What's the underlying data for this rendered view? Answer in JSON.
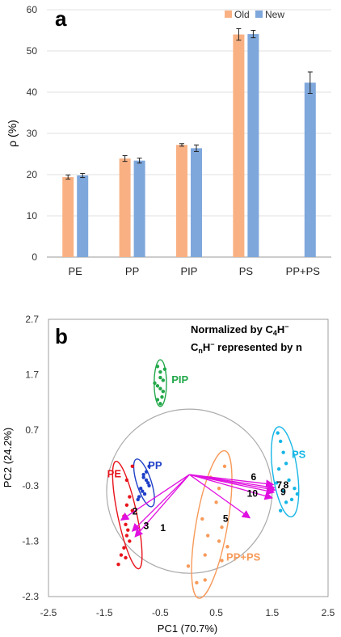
{
  "panels": {
    "a_label": "a",
    "b_label": "b"
  },
  "chart_data": [
    {
      "type": "bar",
      "panel": "a",
      "categories": [
        "PE",
        "PP",
        "PIP",
        "PS",
        "PP+PS"
      ],
      "series": [
        {
          "name": "Old",
          "color": "#f9b183",
          "values": [
            19.4,
            23.9,
            27.2,
            54.0,
            null
          ],
          "errors": [
            0.5,
            0.7,
            0.3,
            1.4,
            null
          ]
        },
        {
          "name": "New",
          "color": "#7ea7dc",
          "values": [
            19.8,
            23.4,
            26.4,
            54.1,
            42.3
          ],
          "errors": [
            0.5,
            0.6,
            0.8,
            0.9,
            2.6
          ]
        }
      ],
      "ylabel": "ρ (%)",
      "xlabel": "",
      "ylim": [
        0,
        60
      ],
      "yticks": [
        0,
        10,
        20,
        30,
        40,
        50,
        60
      ],
      "legend": "top-right",
      "grid": true
    },
    {
      "type": "scatter",
      "panel": "b",
      "xlabel": "PC1 (70.7%)",
      "ylabel": "PC2 (24.2%)",
      "xlim": [
        -2.5,
        2.5
      ],
      "ylim": [
        -2.3,
        2.7
      ],
      "xticks": [
        -2.5,
        -1.5,
        -0.5,
        0.5,
        1.5,
        2.5
      ],
      "yticks": [
        -2.3,
        -1.3,
        -0.3,
        0.7,
        1.7,
        2.7
      ],
      "yticklabels": [
        "-2.3",
        "-1.3",
        "-0.3",
        "0.7",
        "1.7",
        "2.7"
      ],
      "xticklabels": [
        "-2.5",
        "-1.5",
        "-0.5",
        "0.5",
        "1.5",
        "2.5"
      ],
      "note_line1": "Normalized by C",
      "note_sub1": "4",
      "note_mid1": "H",
      "note_sup1": "−",
      "note_line2_a": "C",
      "note_sub2": "n",
      "note_line2_b": "H",
      "note_sup2": "−",
      "note_line2_c": " represented by n",
      "circle": {
        "cx": 0.02,
        "cy": -0.4,
        "r": 1.48,
        "color": "#aaaaaa"
      },
      "groups": [
        {
          "name": "PIP",
          "color": "#22a84a",
          "points": [
            [
              -0.55,
              1.85
            ],
            [
              -0.5,
              1.75
            ],
            [
              -0.45,
              1.6
            ],
            [
              -0.55,
              1.5
            ],
            [
              -0.42,
              1.8
            ],
            [
              -0.5,
              1.45
            ],
            [
              -0.6,
              1.55
            ],
            [
              -0.47,
              1.3
            ],
            [
              -0.55,
              1.25
            ],
            [
              -0.5,
              1.65
            ],
            [
              -0.45,
              1.4
            ],
            [
              -0.5,
              1.18
            ]
          ],
          "ellipse": {
            "cx": -0.5,
            "cy": 1.55,
            "rx": 0.11,
            "ry": 0.42,
            "angle": 0
          },
          "label_pos": [
            -0.3,
            1.55
          ]
        },
        {
          "name": "PP",
          "color": "#2040c8",
          "points": [
            [
              -0.7,
              0.05
            ],
            [
              -0.75,
              -0.05
            ],
            [
              -0.8,
              -0.15
            ],
            [
              -0.72,
              -0.25
            ],
            [
              -0.85,
              -0.35
            ],
            [
              -0.78,
              -0.45
            ],
            [
              -0.9,
              -0.55
            ],
            [
              -0.8,
              -0.1
            ],
            [
              -0.7,
              -0.3
            ],
            [
              -0.88,
              -0.5
            ],
            [
              -0.75,
              -0.2
            ],
            [
              -0.82,
              -0.4
            ]
          ],
          "ellipse": {
            "cx": -0.79,
            "cy": -0.25,
            "rx": 0.13,
            "ry": 0.45,
            "angle": -18
          },
          "label_pos": [
            -0.72,
            0.0
          ]
        },
        {
          "name": "PE",
          "color": "#e8141c",
          "points": [
            [
              -1.0,
              0.05
            ],
            [
              -1.1,
              -0.2
            ],
            [
              -1.05,
              -0.5
            ],
            [
              -1.15,
              -0.85
            ],
            [
              -1.12,
              -1.0
            ],
            [
              -1.08,
              -1.1
            ],
            [
              -1.1,
              -1.2
            ],
            [
              -1.05,
              -1.3
            ],
            [
              -1.15,
              -1.42
            ],
            [
              -1.2,
              -1.55
            ],
            [
              -1.12,
              -1.6
            ],
            [
              -1.25,
              -1.72
            ],
            [
              -1.0,
              -0.75
            ],
            [
              -1.1,
              -0.65
            ]
          ],
          "ellipse": {
            "cx": -1.09,
            "cy": -0.83,
            "rx": 0.17,
            "ry": 0.99,
            "angle": -12
          },
          "label_pos": [
            -1.45,
            -0.15
          ]
        },
        {
          "name": "PS",
          "color": "#17b6e6",
          "points": [
            [
              1.6,
              0.65
            ],
            [
              1.65,
              0.5
            ],
            [
              1.7,
              0.3
            ],
            [
              1.75,
              0.1
            ],
            [
              1.62,
              0.0
            ],
            [
              1.8,
              -0.2
            ],
            [
              1.9,
              -0.35
            ],
            [
              1.7,
              -0.4
            ],
            [
              1.85,
              -0.55
            ],
            [
              1.75,
              -0.6
            ],
            [
              1.65,
              -0.75
            ],
            [
              1.95,
              -0.45
            ],
            [
              1.58,
              -0.25
            ]
          ],
          "ellipse": {
            "cx": 1.73,
            "cy": -0.05,
            "rx": 0.22,
            "ry": 0.82,
            "angle": -8
          },
          "label_pos": [
            1.85,
            0.2
          ]
        },
        {
          "name": "PP+PS",
          "color": "#f79a5a",
          "points": [
            [
              0.65,
              0.05
            ],
            [
              0.55,
              -0.35
            ],
            [
              0.5,
              -0.6
            ],
            [
              0.25,
              -0.9
            ],
            [
              0.6,
              -1.05
            ],
            [
              0.35,
              -1.2
            ],
            [
              0.55,
              -1.3
            ],
            [
              0.7,
              -1.4
            ],
            [
              0.3,
              -1.55
            ],
            [
              0.6,
              -1.65
            ],
            [
              0.0,
              -1.75
            ],
            [
              0.3,
              -2.0
            ],
            [
              0.15,
              -2.05
            ],
            [
              0.4,
              -0.15
            ]
          ],
          "ellipse": {
            "cx": 0.42,
            "cy": -1.0,
            "rx": 0.28,
            "ry": 1.35,
            "angle": 10
          },
          "label_pos": [
            0.68,
            -1.65
          ]
        }
      ],
      "loadings": {
        "origin": [
          0.02,
          -0.1
        ],
        "color": "#e010e0",
        "vectors": [
          {
            "label": "1",
            "tip": [
              -0.95,
              -1.22
            ],
            "label_pos": [
              -0.5,
              -1.12
            ]
          },
          {
            "label": "2",
            "tip": [
              -1.2,
              -0.92
            ],
            "label_pos": [
              -1.0,
              -0.82
            ]
          },
          {
            "label": "3",
            "tip": [
              -1.0,
              -1.12
            ],
            "label_pos": [
              -0.8,
              -1.08
            ]
          },
          {
            "label": "5",
            "tip": [
              1.1,
              -0.88
            ],
            "label_pos": [
              0.62,
              -0.95
            ]
          },
          {
            "label": "6",
            "tip": [
              1.52,
              -0.28
            ],
            "label_pos": [
              1.12,
              -0.2
            ]
          },
          {
            "label": "7",
            "tip": [
              1.54,
              -0.34
            ],
            "label_pos": [
              1.58,
              -0.35
            ]
          },
          {
            "label": "8",
            "tip": [
              1.55,
              -0.38
            ],
            "label_pos": [
              1.7,
              -0.35
            ]
          },
          {
            "label": "9",
            "tip": [
              1.53,
              -0.42
            ],
            "label_pos": [
              1.65,
              -0.47
            ]
          },
          {
            "label": "10",
            "tip": [
              1.5,
              -0.52
            ],
            "label_pos": [
              1.05,
              -0.5
            ]
          }
        ]
      }
    }
  ]
}
